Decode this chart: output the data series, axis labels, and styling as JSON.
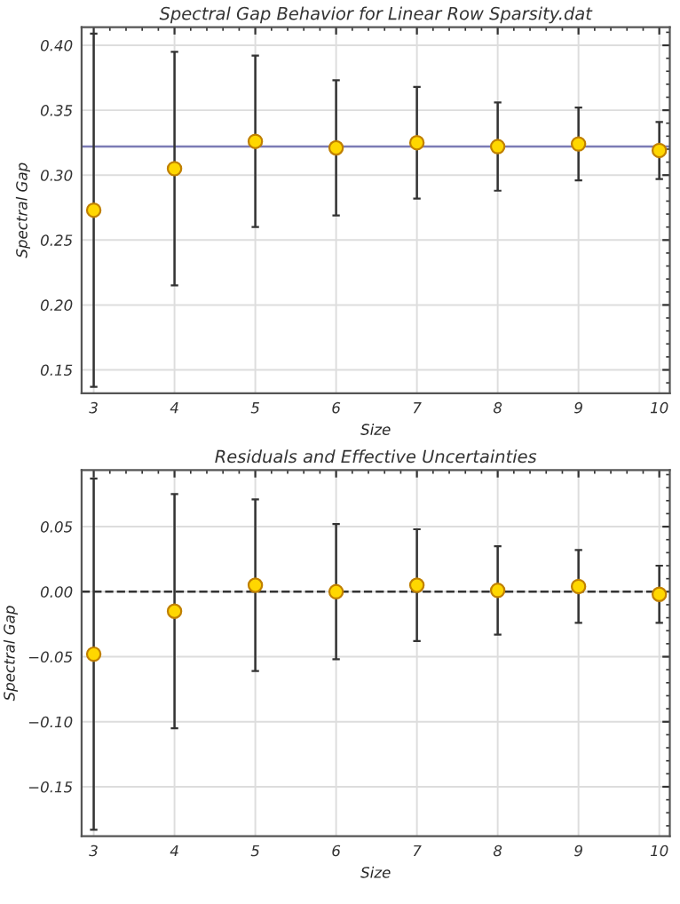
{
  "chart_data": [
    {
      "type": "scatter",
      "title": "Spectral Gap Behavior for Linear Row Sparsity.dat",
      "xlabel": "Size",
      "ylabel": "Spectral Gap",
      "marker": "circle",
      "grid": true,
      "x": [
        3,
        4,
        5,
        6,
        7,
        8,
        9,
        10
      ],
      "series": [
        {
          "color": "#ffd700",
          "values": [
            0.273,
            0.305,
            0.326,
            0.321,
            0.325,
            0.322,
            0.324,
            0.319
          ],
          "errors": [
            0.136,
            0.09,
            0.066,
            0.052,
            0.043,
            0.034,
            0.028,
            0.022
          ]
        }
      ],
      "ref_lines": [
        {
          "axis": "y",
          "value": 0.322,
          "color": "#7b7bb5",
          "line_style": "solid"
        }
      ],
      "xlim": [
        2.85,
        10.13
      ],
      "xticks": [
        3,
        4,
        5,
        6,
        7,
        8,
        9,
        10
      ],
      "ylim": [
        0.132,
        0.414
      ],
      "yticks": [
        0.15,
        {
          "value": 0.2,
          "label": "0.20"
        },
        0.25,
        {
          "value": 0.3,
          "label": "0.30"
        },
        0.35,
        {
          "value": 0.4,
          "label": "0.40"
        }
      ]
    },
    {
      "type": "scatter",
      "title": "Residuals and Effective Uncertainties",
      "xlabel": "Size",
      "ylabel": "Spectral Gap",
      "marker": "circle",
      "grid": true,
      "x": [
        3,
        4,
        5,
        6,
        7,
        8,
        9,
        10
      ],
      "series": [
        {
          "color": "#ffd700",
          "values": [
            -0.048,
            -0.015,
            0.005,
            0.0,
            0.005,
            0.001,
            0.004,
            -0.002
          ],
          "errors": [
            0.135,
            0.09,
            0.066,
            0.052,
            0.043,
            0.034,
            0.028,
            0.022
          ]
        }
      ],
      "ref_lines": [
        {
          "axis": "y",
          "value": 0,
          "color": "#333333",
          "line_style": "dashed"
        }
      ],
      "xlim": [
        2.85,
        10.13
      ],
      "xticks": [
        3,
        4,
        5,
        6,
        7,
        8,
        9,
        10
      ],
      "ylim": [
        -0.188,
        0.0935
      ],
      "yticks": [
        {
          "value": -0.15,
          "label": "−0.15"
        },
        {
          "value": -0.1,
          "label": "−0.10"
        },
        {
          "value": -0.05,
          "label": "−0.05"
        },
        {
          "value": 0,
          "label": "0.00"
        },
        {
          "value": 0.05,
          "label": "0.05"
        }
      ]
    }
  ]
}
